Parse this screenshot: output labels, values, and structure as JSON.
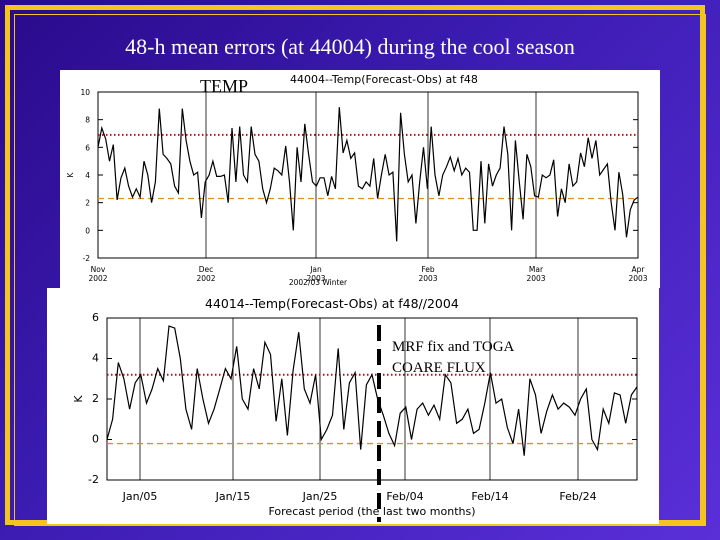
{
  "slide_title": "48-h mean errors (at 44004) during the cool season",
  "chart_data": [
    {
      "type": "line",
      "panel_label": "TEMP",
      "title": "44004--Temp(Forecast-Obs) at f48",
      "ylabel": "K",
      "xlabel": "2002/03 Winter",
      "ylim": [
        -2,
        10
      ],
      "yticks": [
        -2,
        0,
        2,
        4,
        6,
        8,
        10
      ],
      "x_tick_labels": [
        "Nov 2002",
        "Dec 2002",
        "Jan 2003",
        "Feb 2003",
        "Mar 2003",
        "Apr 2003"
      ],
      "reference_lines": [
        {
          "name": "upper reference",
          "value": 6.9,
          "style": "dotted",
          "color": "#b01010"
        },
        {
          "name": "lower reference",
          "value": 2.3,
          "style": "dashed",
          "color": "#e09020"
        }
      ],
      "series": [
        {
          "values": [
            6.0,
            7.4,
            6.6,
            5.0,
            6.2,
            2.2,
            3.8,
            4.5,
            3.2,
            2.4,
            3.0,
            2.4,
            5.0,
            4.0,
            2.0,
            3.5,
            8.8,
            5.5,
            5.2,
            4.8,
            3.2,
            2.7,
            8.8,
            6.5,
            5.0,
            4.0,
            4.2,
            0.9,
            3.5,
            4.0,
            5.0,
            3.9,
            3.9,
            4.0,
            2.0,
            7.4,
            3.5,
            7.5,
            4.0,
            3.5,
            7.5,
            5.5,
            5.0,
            3.0,
            2.0,
            3.0,
            4.5,
            4.3,
            4.0,
            6.1,
            3.5,
            0.0,
            6.0,
            3.5,
            7.7,
            5.5,
            3.5,
            3.2,
            3.8,
            3.8,
            2.5,
            3.9,
            3.0,
            8.9,
            5.6,
            6.5,
            5.2,
            5.6,
            3.2,
            3.0,
            3.5,
            3.2,
            5.2,
            2.3,
            4.0,
            5.5,
            4.0,
            4.2,
            -0.8,
            8.5,
            5.5,
            3.5,
            4.0,
            0.5,
            3.5,
            6.0,
            3.0,
            7.5,
            4.0,
            2.5,
            4.0,
            4.6,
            5.3,
            4.3,
            5.2,
            4.0,
            4.5,
            4.2,
            0.0,
            0.0,
            5.0,
            0.5,
            4.8,
            3.2,
            4.0,
            4.5,
            7.5,
            5.5,
            0.0,
            6.5,
            3.5,
            0.8,
            5.5,
            4.6,
            2.5,
            2.4,
            4.0,
            3.8,
            4.0,
            5.1,
            1.0,
            3.0,
            2.0,
            4.8,
            3.2,
            3.5,
            5.6,
            4.6,
            6.7,
            5.2,
            6.5,
            4.0,
            4.4,
            4.8,
            2.0,
            0.0,
            4.2,
            2.6,
            -0.5,
            1.5,
            2.2,
            2.4
          ]
        }
      ]
    },
    {
      "type": "line",
      "title": "44014--Temp(Forecast-Obs) at f48//2004",
      "ylabel": "K",
      "xlabel": "Forecast period (the last two months)",
      "ylim": [
        -2,
        6
      ],
      "yticks": [
        -2,
        0,
        2,
        4,
        6
      ],
      "x_tick_labels": [
        "Jan/05",
        "Jan/15",
        "Jan/25",
        "Feb/04",
        "Feb/14",
        "Feb/24"
      ],
      "annotation": "MRF fix and TOGA COARE FLUX",
      "reference_lines": [
        {
          "name": "upper reference",
          "value": 3.2,
          "style": "dotted",
          "color": "#b01010"
        },
        {
          "name": "lower reference",
          "value": -0.2,
          "style": "dashed",
          "color": "#e09020"
        }
      ],
      "series": [
        {
          "values": [
            0.0,
            1.0,
            3.8,
            3.0,
            1.5,
            2.8,
            3.2,
            1.8,
            2.5,
            3.5,
            2.9,
            5.6,
            5.5,
            4.0,
            1.5,
            0.5,
            3.5,
            2.0,
            0.8,
            1.5,
            2.5,
            3.5,
            3.0,
            4.6,
            2.0,
            1.5,
            3.5,
            2.5,
            4.8,
            4.2,
            0.9,
            3.0,
            0.2,
            3.4,
            5.3,
            2.5,
            1.8,
            3.2,
            0.0,
            0.5,
            1.2,
            4.5,
            0.5,
            2.8,
            3.3,
            -0.5,
            2.7,
            3.2,
            2.0,
            1.2,
            0.3,
            -0.3,
            1.3,
            1.6,
            0.0,
            1.5,
            1.8,
            1.2,
            1.7,
            1.0,
            3.2,
            2.8,
            0.8,
            1.0,
            1.5,
            0.3,
            0.5,
            1.8,
            3.3,
            1.8,
            2.0,
            0.6,
            -0.2,
            1.5,
            -0.8,
            3.0,
            2.2,
            0.3,
            1.4,
            2.2,
            1.5,
            1.8,
            1.6,
            1.2,
            2.0,
            2.5,
            0.0,
            -0.5,
            1.5,
            0.8,
            2.3,
            2.2,
            0.8,
            2.2,
            2.6
          ]
        }
      ]
    }
  ]
}
